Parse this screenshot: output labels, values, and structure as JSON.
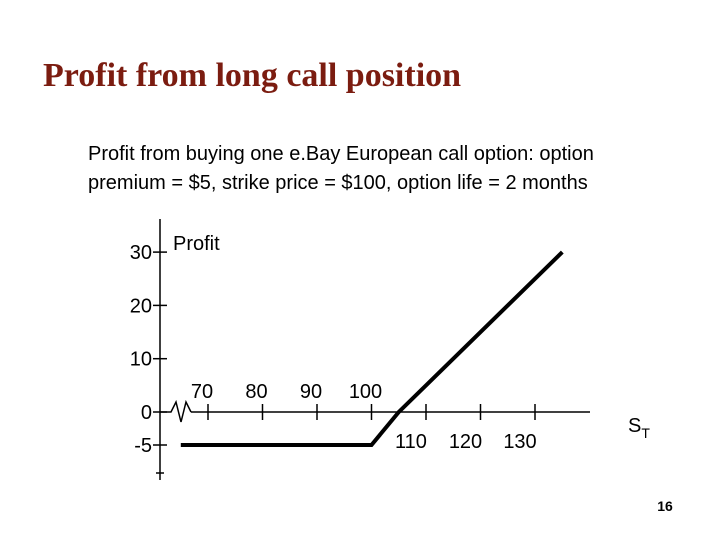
{
  "slide": {
    "title": "Profit from long call position",
    "subtitle_lines": [
      "Profit from buying one e.Bay European call option: option",
      "premium = $5, strike price = $100, option life = 2 months"
    ],
    "page_number": "16"
  },
  "chart_data": {
    "type": "line",
    "title": "",
    "ylabel": "Profit",
    "xlabel_main": "S",
    "xlabel_sub": "T",
    "y_ticks": [
      "30",
      "20",
      "10",
      "0",
      "-5"
    ],
    "x_ticks_above": [
      "70",
      "80",
      "90",
      "100"
    ],
    "x_ticks_below": [
      "110",
      "120",
      "130"
    ],
    "axis_break": true,
    "ylim": [
      -10,
      30
    ],
    "xlim": [
      60,
      140
    ],
    "series": [
      {
        "x": [
          65,
          95,
          100,
          105,
          135
        ],
        "y": [
          -5,
          -5,
          -5,
          0,
          30
        ]
      }
    ],
    "colors": {
      "line": "#000000",
      "axis": "#000000"
    }
  }
}
